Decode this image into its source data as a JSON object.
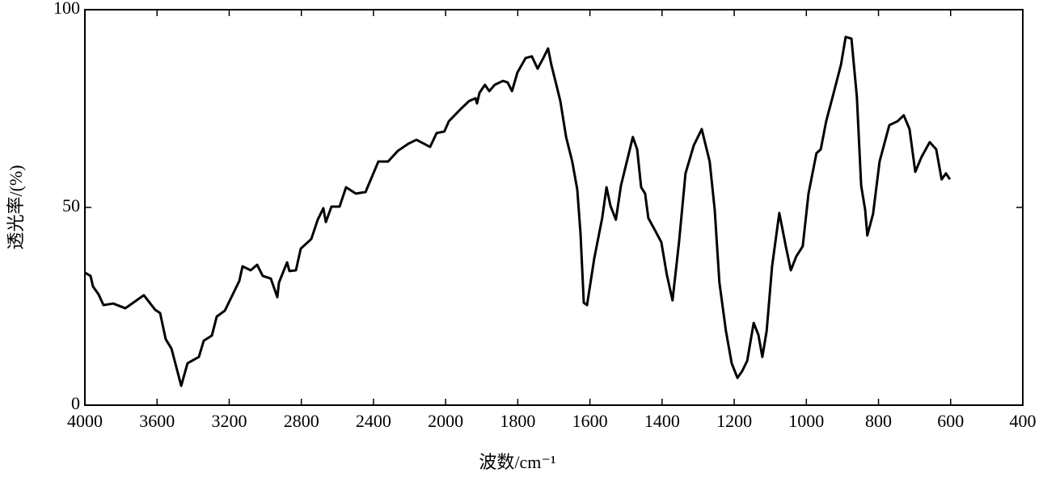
{
  "chart_data": {
    "type": "line",
    "x_label": "波数/cm⁻¹",
    "y_label": "透光率/(%)",
    "xlim": [
      4000,
      400
    ],
    "ylim": [
      0,
      100
    ],
    "xticks": [
      4000,
      3600,
      3200,
      2800,
      2400,
      2000,
      1800,
      1600,
      1400,
      1200,
      1000,
      800,
      600,
      400
    ],
    "yticks": [
      0,
      50,
      100
    ],
    "series": [
      {
        "color": "#000000",
        "x": [
          4000,
          3969,
          3955,
          3924,
          3897,
          3843,
          3776,
          3673,
          3610,
          3583,
          3552,
          3520,
          3466,
          3431,
          3368,
          3341,
          3296,
          3269,
          3224,
          3144,
          3126,
          3081,
          3045,
          3014,
          2969,
          2933,
          2924,
          2879,
          2866,
          2830,
          2803,
          2745,
          2709,
          2678,
          2664,
          2633,
          2588,
          2552,
          2498,
          2444,
          2373,
          2319,
          2265,
          2207,
          2162,
          2086,
          2050,
          2007,
          1991,
          1958,
          1935,
          1917,
          1913,
          1906,
          1891,
          1879,
          1864,
          1841,
          1828,
          1816,
          1801,
          1778,
          1761,
          1745,
          1729,
          1716,
          1707,
          1693,
          1682,
          1666,
          1649,
          1635,
          1626,
          1617,
          1608,
          1588,
          1566,
          1554,
          1543,
          1528,
          1514,
          1492,
          1481,
          1469,
          1458,
          1447,
          1438,
          1420,
          1402,
          1387,
          1371,
          1353,
          1335,
          1312,
          1290,
          1268,
          1254,
          1241,
          1223,
          1207,
          1191,
          1178,
          1164,
          1146,
          1133,
          1122,
          1110,
          1095,
          1075,
          1057,
          1043,
          1028,
          1010,
          994,
          972,
          960,
          945,
          927,
          904,
          891,
          875,
          860,
          848,
          837,
          831,
          815,
          797,
          770,
          747,
          730,
          714,
          698,
          681,
          658,
          640,
          625,
          613,
          602
        ],
        "values": [
          33.5,
          32.7,
          30,
          28,
          25.3,
          25.7,
          24.5,
          27.8,
          24.1,
          23.3,
          16.7,
          14.3,
          4.9,
          10.6,
          12.2,
          16.3,
          17.6,
          22.4,
          23.9,
          31.4,
          35.1,
          34.1,
          35.5,
          32.7,
          32,
          27.3,
          31,
          36.1,
          33.9,
          34.1,
          39.6,
          42,
          46.9,
          49.8,
          46.3,
          50.2,
          50.2,
          55.1,
          53.5,
          53.9,
          61.6,
          61.6,
          64.3,
          66.1,
          67.1,
          65.3,
          68.8,
          69.2,
          71.8,
          74.9,
          76.9,
          77.6,
          76.3,
          79,
          81,
          79.4,
          81,
          82,
          81.6,
          79.4,
          84.1,
          87.8,
          88.2,
          85.1,
          87.8,
          90.2,
          86.1,
          81,
          76.9,
          67.8,
          61.6,
          54.5,
          43.3,
          25.9,
          25.3,
          37.1,
          47.3,
          55.1,
          50.4,
          46.9,
          55.5,
          63.7,
          67.8,
          64.7,
          55.1,
          53.5,
          47.3,
          44.3,
          41.2,
          33.1,
          26.5,
          41.2,
          58.6,
          65.7,
          69.8,
          61.6,
          49.4,
          31,
          18.8,
          10.6,
          6.9,
          8.6,
          11.2,
          20.8,
          17.8,
          12.2,
          18.8,
          35.1,
          48.6,
          40.2,
          34.1,
          37.6,
          40.2,
          53.5,
          63.7,
          64.7,
          71.8,
          78,
          86.1,
          93.1,
          92.7,
          78,
          55.5,
          49.4,
          42.9,
          48.4,
          61.6,
          70.8,
          71.8,
          73.3,
          69.8,
          59,
          62.7,
          66.5,
          64.7,
          57.1,
          58.6,
          57.1
        ]
      }
    ]
  }
}
